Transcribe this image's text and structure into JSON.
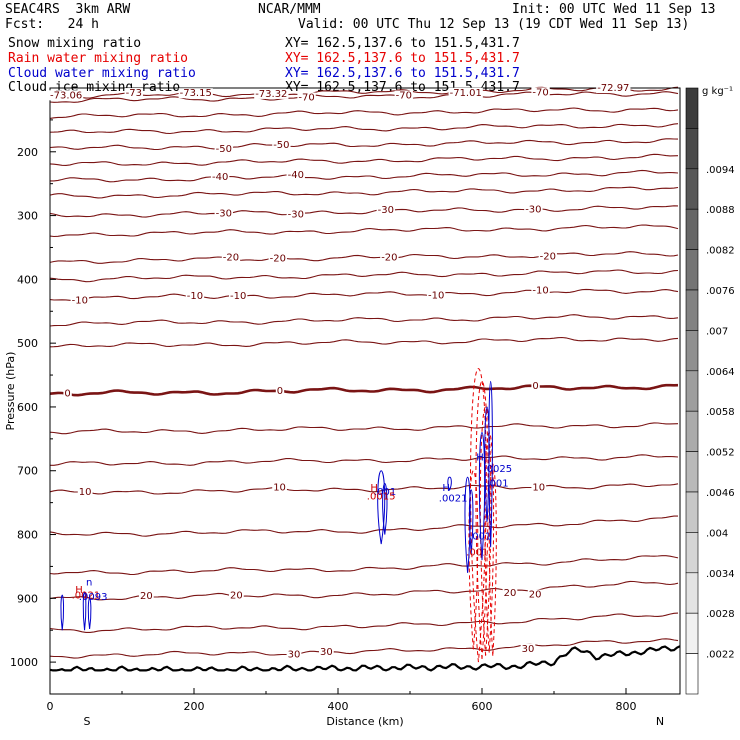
{
  "header": {
    "model": "SEAC4RS  3km ARW",
    "org": "NCAR/MMM",
    "init": "Init: 00 UTC Wed 11 Sep 13",
    "fcst": "Fcst:   24 h",
    "valid": "Valid: 00 UTC Thu 12 Sep 13 (19 CDT Wed 11 Sep 13)"
  },
  "fields": [
    {
      "name": "Snow mixing ratio",
      "xy": "XY= 162.5,137.6 to 151.5,431.7",
      "color": "#000000"
    },
    {
      "name": "Rain water mixing ratio",
      "xy": "XY= 162.5,137.6 to 151.5,431.7",
      "color": "#e60000"
    },
    {
      "name": "Cloud water mixing ratio",
      "xy": "XY= 162.5,137.6 to 151.5,431.7",
      "color": "#0000cc"
    },
    {
      "name": "Cloud ice mixing ratio",
      "xy": "XY= 162.5,137.6 to 151.5,431.7",
      "color": "#000000"
    }
  ],
  "chart_data": {
    "type": "cross-section",
    "xlabel": "Distance (km)",
    "ylabel": "Pressure (hPa)",
    "xlim": [
      0,
      875
    ],
    "ylim": [
      1050,
      100
    ],
    "x_ticks": [
      0,
      200,
      400,
      600,
      800
    ],
    "y_ticks": [
      200,
      300,
      400,
      500,
      600,
      700,
      800,
      900,
      1000
    ],
    "x_end_labels": {
      "left": "S",
      "right": "N"
    },
    "temperature_isotherms": [
      {
        "p": 113,
        "labels": [
          {
            "x": 0,
            "t": "-73.06"
          },
          {
            "x": 105,
            "t": "-73"
          },
          {
            "x": 180,
            "t": "-73.15"
          },
          {
            "x": 285,
            "t": "-73.32"
          },
          {
            "x": 555,
            "t": "-71.01"
          },
          {
            "x": 760,
            "t": "-72.97"
          }
        ]
      },
      {
        "p": 120,
        "labels": [
          {
            "x": 345,
            "t": "-70"
          },
          {
            "x": 480,
            "t": "-70"
          },
          {
            "x": 670,
            "t": "-70"
          }
        ]
      },
      {
        "p": 145,
        "labels": []
      },
      {
        "p": 170,
        "labels": []
      },
      {
        "p": 195,
        "labels": [
          {
            "x": 230,
            "t": "-50"
          },
          {
            "x": 310,
            "t": "-50"
          }
        ]
      },
      {
        "p": 220,
        "labels": []
      },
      {
        "p": 245,
        "labels": [
          {
            "x": 225,
            "t": "-40"
          },
          {
            "x": 330,
            "t": "-40"
          }
        ]
      },
      {
        "p": 270,
        "labels": []
      },
      {
        "p": 300,
        "labels": [
          {
            "x": 230,
            "t": "-30"
          },
          {
            "x": 330,
            "t": "-30"
          },
          {
            "x": 455,
            "t": "-30"
          },
          {
            "x": 660,
            "t": "-30"
          }
        ]
      },
      {
        "p": 330,
        "labels": []
      },
      {
        "p": 372,
        "labels": [
          {
            "x": 240,
            "t": "-20"
          },
          {
            "x": 305,
            "t": "-20"
          },
          {
            "x": 460,
            "t": "-20"
          },
          {
            "x": 680,
            "t": "-20"
          }
        ]
      },
      {
        "p": 400,
        "labels": []
      },
      {
        "p": 430,
        "labels": [
          {
            "x": 30,
            "t": "-10"
          },
          {
            "x": 190,
            "t": "-10"
          },
          {
            "x": 250,
            "t": "-10"
          },
          {
            "x": 525,
            "t": "-10"
          },
          {
            "x": 670,
            "t": "-10"
          }
        ]
      },
      {
        "p": 470,
        "labels": []
      },
      {
        "p": 505,
        "labels": []
      },
      {
        "p": 580,
        "labels": [
          {
            "x": 20,
            "t": "0"
          },
          {
            "x": 315,
            "t": "0"
          },
          {
            "x": 670,
            "t": "0"
          }
        ],
        "bold": true
      },
      {
        "p": 640,
        "labels": []
      },
      {
        "p": 690,
        "labels": []
      },
      {
        "p": 735,
        "labels": [
          {
            "x": 40,
            "t": "10"
          },
          {
            "x": 310,
            "t": "10"
          },
          {
            "x": 670,
            "t": "10"
          }
        ]
      },
      {
        "p": 800,
        "labels": []
      },
      {
        "p": 860,
        "labels": []
      },
      {
        "p": 900,
        "labels": [
          {
            "x": 125,
            "t": "20"
          },
          {
            "x": 250,
            "t": "20"
          },
          {
            "x": 630,
            "t": "20"
          },
          {
            "x": 665,
            "t": "20"
          }
        ]
      },
      {
        "p": 950,
        "labels": []
      },
      {
        "p": 990,
        "labels": [
          {
            "x": 330,
            "t": "30"
          },
          {
            "x": 375,
            "t": "30"
          },
          {
            "x": 655,
            "t": "30"
          }
        ]
      }
    ],
    "terrain_line": "bold black surface pressure line, ~1012 hPa near S rising to ~955 hPa near x=840 km",
    "field_labels": [
      {
        "x": 35,
        "p": 892,
        "t": "H",
        "color": "#cc0000"
      },
      {
        "x": 50,
        "p": 880,
        "t": "n",
        "color": "#0000cc"
      },
      {
        "x": 30,
        "p": 900,
        "t": ".0021",
        "color": "#cc0000"
      },
      {
        "x": 40,
        "p": 903,
        "t": ".0093",
        "color": "#0000cc"
      },
      {
        "x": 445,
        "p": 732,
        "t": "H",
        "color": "#cc0000"
      },
      {
        "x": 450,
        "p": 738,
        "t": ".001",
        "color": "#0000cc"
      },
      {
        "x": 440,
        "p": 745,
        "t": ".0015",
        "color": "#cc0000"
      },
      {
        "x": 545,
        "p": 732,
        "t": "H",
        "color": "#0000cc"
      },
      {
        "x": 540,
        "p": 748,
        "t": ".0021",
        "color": "#0000cc"
      },
      {
        "x": 582,
        "p": 808,
        "t": ".001",
        "color": "#0000cc"
      },
      {
        "x": 578,
        "p": 833,
        "t": ".001",
        "color": "#cc0000"
      },
      {
        "x": 592,
        "p": 684,
        "t": "H",
        "color": "#0000cc"
      },
      {
        "x": 602,
        "p": 702,
        "t": ".0025",
        "color": "#0000cc"
      },
      {
        "x": 606,
        "p": 725,
        "t": ".001",
        "color": "#0000cc"
      }
    ],
    "colorbar": {
      "unit": "g kg⁻¹",
      "tick_labels": [
        ".0094",
        ".0088",
        ".0082",
        ".0076",
        ".007",
        ".0064",
        ".0058",
        ".0052",
        ".0046",
        ".004",
        ".0034",
        ".0028",
        ".0022"
      ]
    }
  }
}
